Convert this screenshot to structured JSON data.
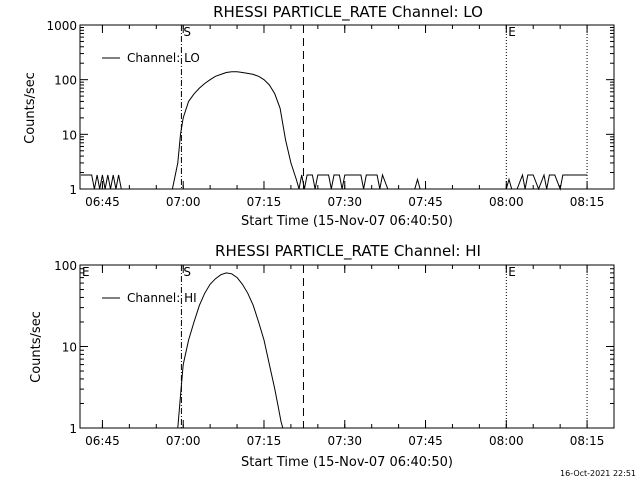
{
  "footer_timestamp": "16-Oct-2021 22:51",
  "chart_data": [
    {
      "type": "line",
      "title": "RHESSI PARTICLE_RATE Channel: LO",
      "xlabel": "Start Time (15-Nov-07 06:40:50)",
      "ylabel": "Counts/sec",
      "yscale": "log",
      "ylim": [
        1,
        1000
      ],
      "xlim": [
        "06:40:50",
        "08:20:00"
      ],
      "x_ticks": [
        "06:45",
        "07:00",
        "07:15",
        "07:30",
        "07:45",
        "08:00",
        "08:15"
      ],
      "y_ticks": [
        "1",
        "10",
        "100",
        "1000"
      ],
      "legend": "top-left",
      "markers": [
        {
          "time": "06:59:40",
          "style": "dash-dot",
          "label": "S"
        },
        {
          "time": "07:22:20",
          "style": "dashed",
          "label": ""
        },
        {
          "time": "08:00:00",
          "style": "dotted",
          "label": "E"
        },
        {
          "time": "08:15:00",
          "style": "dotted",
          "label": ""
        }
      ],
      "series": [
        {
          "name": "Channel: LO",
          "x": [
            "06:41:00",
            "06:43:00",
            "06:43:30",
            "06:44:00",
            "06:44:30",
            "06:45:00",
            "06:45:30",
            "06:46:00",
            "06:46:30",
            "06:47:00",
            "06:47:30",
            "06:48:00",
            "06:48:30",
            "06:50:00",
            "06:51:00",
            "06:52:00",
            "06:53:00",
            "06:54:00",
            "06:55:00",
            "06:56:00",
            "06:57:00",
            "06:58:00",
            "06:59:00",
            "06:59:30",
            "07:00:00",
            "07:01:00",
            "07:02:00",
            "07:03:00",
            "07:04:00",
            "07:05:00",
            "07:06:00",
            "07:07:00",
            "07:08:00",
            "07:09:00",
            "07:10:00",
            "07:11:00",
            "07:12:00",
            "07:13:00",
            "07:14:00",
            "07:15:00",
            "07:16:00",
            "07:17:00",
            "07:18:00",
            "07:19:00",
            "07:20:00",
            "07:21:00",
            "07:21:30",
            "07:22:00",
            "07:22:30",
            "07:23:00",
            "07:24:00",
            "07:24:30",
            "07:25:00",
            "07:26:00",
            "07:27:00",
            "07:27:30",
            "07:28:00",
            "07:29:00",
            "07:29:30",
            "07:30:00",
            "07:31:00",
            "07:32:00",
            "07:33:00",
            "07:33:30",
            "07:34:00",
            "07:35:00",
            "07:36:00",
            "07:36:30",
            "07:37:00",
            "07:38:00",
            "07:40:00",
            "07:43:00",
            "07:43:30",
            "07:44:00",
            "07:46:00",
            "07:50:00",
            "07:55:00",
            "08:00:00",
            "08:00:30",
            "08:01:00",
            "08:02:00",
            "08:03:00",
            "08:03:30",
            "08:04:00",
            "08:05:00",
            "08:06:00",
            "08:07:00",
            "08:07:30",
            "08:08:00",
            "08:09:00",
            "08:10:00",
            "08:10:30",
            "08:11:00",
            "08:12:00",
            "08:13:00",
            "08:14:00",
            "08:15:00"
          ],
          "y": [
            1.8,
            1.8,
            1,
            1.8,
            1,
            1.8,
            1,
            1.8,
            1,
            1.8,
            1,
            1.8,
            1,
            1,
            1,
            1,
            1,
            1,
            1,
            1,
            1,
            1,
            3,
            10,
            20,
            40,
            55,
            70,
            85,
            100,
            115,
            125,
            135,
            140,
            140,
            135,
            130,
            125,
            115,
            100,
            80,
            55,
            30,
            8,
            3,
            1.5,
            1,
            1.8,
            1,
            1.8,
            1.8,
            1,
            1.8,
            1.8,
            1.8,
            1,
            1.8,
            1.8,
            1,
            1.8,
            1.8,
            1.8,
            1.8,
            1,
            1.8,
            1.8,
            1.8,
            1,
            1.8,
            1,
            1,
            1,
            1.5,
            1,
            1,
            1,
            1,
            1,
            1.5,
            1,
            1,
            1.8,
            1,
            1.8,
            1.8,
            1,
            1.8,
            1,
            1.8,
            1.8,
            1,
            1.8,
            1.8,
            1.8,
            1.8,
            1.8,
            1.8
          ]
        }
      ]
    },
    {
      "type": "line",
      "title": "RHESSI PARTICLE_RATE Channel: HI",
      "xlabel": "Start Time (15-Nov-07 06:40:50)",
      "ylabel": "Counts/sec",
      "yscale": "log",
      "ylim": [
        1,
        100
      ],
      "xlim": [
        "06:40:50",
        "08:20:00"
      ],
      "x_ticks": [
        "06:45",
        "07:00",
        "07:15",
        "07:30",
        "07:45",
        "08:00",
        "08:15"
      ],
      "y_ticks": [
        "1",
        "10",
        "100"
      ],
      "legend": "top-left",
      "markers": [
        {
          "time": "06:59:40",
          "style": "dash-dot",
          "label": "S"
        },
        {
          "time": "07:22:20",
          "style": "dashed",
          "label": ""
        },
        {
          "time": "08:00:00",
          "style": "dotted",
          "label": "E"
        },
        {
          "time": "08:15:00",
          "style": "dotted",
          "label": ""
        }
      ],
      "corner_labels": [
        "E"
      ],
      "series": [
        {
          "name": "Channel: HI",
          "x": [
            "06:59:00",
            "06:59:30",
            "07:00:00",
            "07:01:00",
            "07:02:00",
            "07:03:00",
            "07:04:00",
            "07:05:00",
            "07:06:00",
            "07:07:00",
            "07:08:00",
            "07:09:00",
            "07:10:00",
            "07:11:00",
            "07:12:00",
            "07:13:00",
            "07:14:00",
            "07:15:00",
            "07:16:00",
            "07:17:00",
            "07:17:40",
            "07:18:10",
            "07:18:30"
          ],
          "y": [
            1,
            2.5,
            6,
            12,
            20,
            32,
            45,
            58,
            68,
            76,
            80,
            78,
            70,
            58,
            45,
            32,
            20,
            12,
            6,
            3,
            1.8,
            1.2,
            1
          ]
        }
      ]
    }
  ]
}
